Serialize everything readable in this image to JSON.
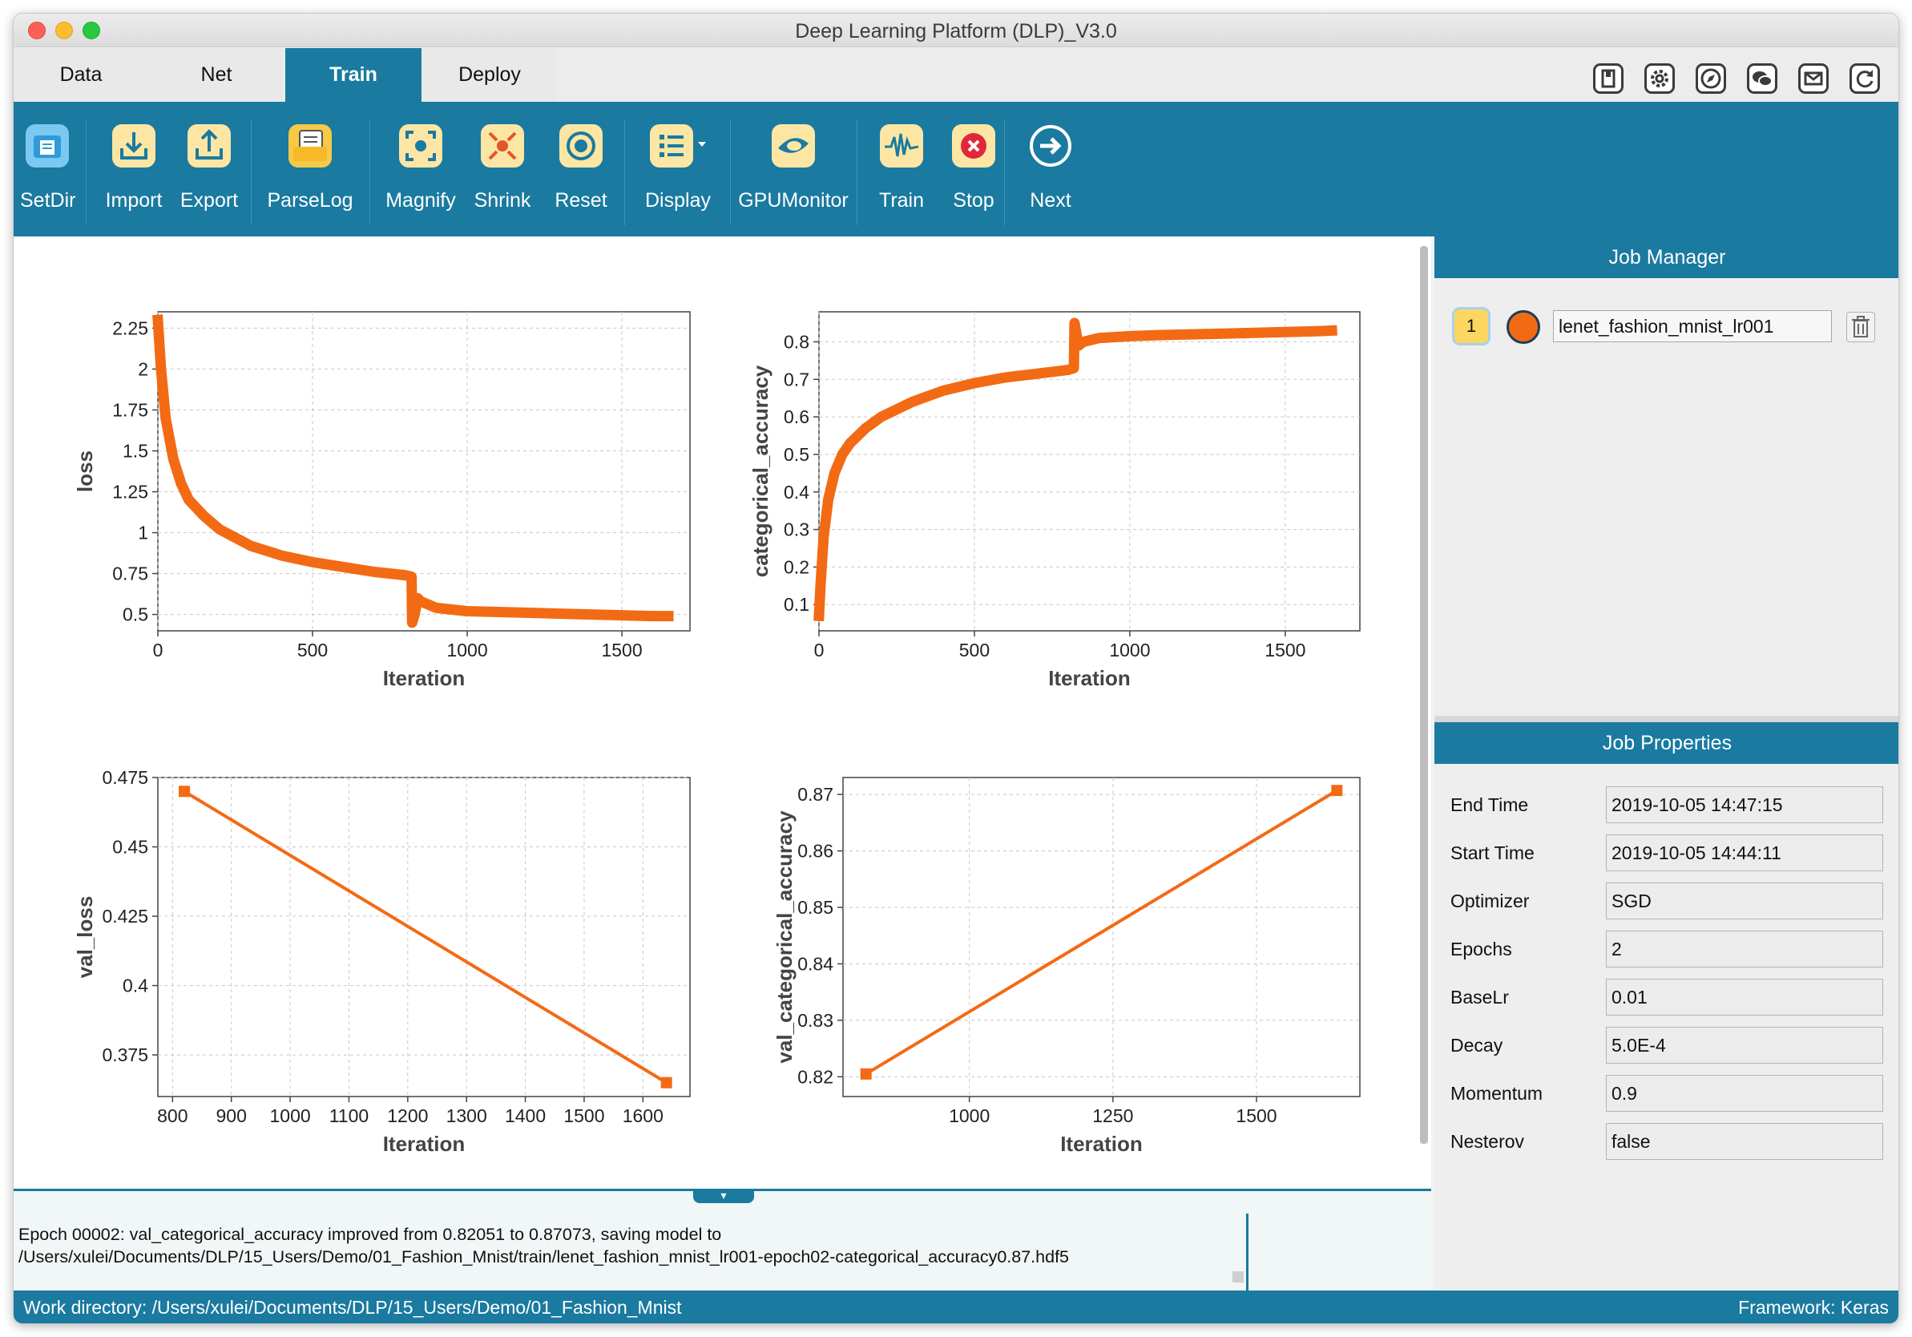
{
  "window": {
    "title": "Deep Learning Platform (DLP)_V3.0"
  },
  "tabs": [
    {
      "label": "Data"
    },
    {
      "label": "Net"
    },
    {
      "label": "Train"
    },
    {
      "label": "Deploy"
    }
  ],
  "active_tab": "Train",
  "top_icons": [
    "bookmark-icon",
    "gear-icon",
    "compass-icon",
    "wechat-icon",
    "mail-icon",
    "refresh-icon"
  ],
  "toolbar": {
    "setdir": "SetDir",
    "import": "Import",
    "export": "Export",
    "parselog": "ParseLog",
    "magnify": "Magnify",
    "shrink": "Shrink",
    "reset": "Reset",
    "display": "Display",
    "gpumonitor": "GPUMonitor",
    "train": "Train",
    "stop": "Stop",
    "next": "Next"
  },
  "colors": {
    "accent": "#1a7aa0",
    "series": "#f36a14",
    "icon_bg": "#fde6a4"
  },
  "chart_data": [
    {
      "type": "line",
      "xlabel": "Iteration",
      "ylabel": "loss",
      "xlim": [
        0,
        1720
      ],
      "ylim": [
        0.4,
        2.35
      ],
      "xticks": [
        0,
        500,
        1000,
        1500
      ],
      "yticks": [
        0.5,
        0.75,
        1,
        1.25,
        1.5,
        1.75,
        2,
        2.25
      ],
      "ytick_labels": [
        "0.5",
        "0.75",
        "1",
        "1.25",
        "1.5",
        "1.75",
        "2",
        "2.25"
      ],
      "x": [
        0,
        10,
        25,
        50,
        75,
        100,
        150,
        200,
        300,
        400,
        500,
        600,
        700,
        800,
        820,
        822,
        830,
        840,
        850,
        900,
        1000,
        1100,
        1200,
        1300,
        1400,
        1500,
        1600,
        1650
      ],
      "y": [
        2.3,
        2.0,
        1.7,
        1.45,
        1.3,
        1.2,
        1.1,
        1.02,
        0.92,
        0.86,
        0.82,
        0.79,
        0.76,
        0.74,
        0.73,
        0.45,
        0.5,
        0.6,
        0.58,
        0.54,
        0.52,
        0.515,
        0.51,
        0.505,
        0.5,
        0.495,
        0.49,
        0.49
      ]
    },
    {
      "type": "line",
      "xlabel": "Iteration",
      "ylabel": "categorical_accuracy",
      "xlim": [
        0,
        1740
      ],
      "ylim": [
        0.03,
        0.88
      ],
      "xticks": [
        0,
        500,
        1000,
        1500
      ],
      "yticks": [
        0.1,
        0.2,
        0.3,
        0.4,
        0.5,
        0.6,
        0.7,
        0.8
      ],
      "ytick_labels": [
        "0.1",
        "0.2",
        "0.3",
        "0.4",
        "0.5",
        "0.6",
        "0.7",
        "0.8"
      ],
      "x": [
        0,
        5,
        15,
        30,
        50,
        75,
        100,
        150,
        200,
        300,
        400,
        500,
        600,
        700,
        800,
        820,
        822,
        835,
        850,
        900,
        1000,
        1100,
        1200,
        1300,
        1400,
        1500,
        1600,
        1650
      ],
      "y": [
        0.07,
        0.15,
        0.28,
        0.38,
        0.45,
        0.5,
        0.53,
        0.57,
        0.6,
        0.64,
        0.67,
        0.69,
        0.705,
        0.715,
        0.725,
        0.73,
        0.85,
        0.79,
        0.8,
        0.81,
        0.815,
        0.818,
        0.82,
        0.822,
        0.824,
        0.826,
        0.828,
        0.83
      ]
    },
    {
      "type": "line",
      "xlabel": "Iteration",
      "ylabel": "val_loss",
      "xlim": [
        775,
        1680
      ],
      "ylim": [
        0.36,
        0.475
      ],
      "xticks": [
        800,
        900,
        1000,
        1100,
        1200,
        1300,
        1400,
        1500,
        1600
      ],
      "yticks": [
        0.375,
        0.4,
        0.425,
        0.45,
        0.475
      ],
      "ytick_labels": [
        "0.375",
        "0.4",
        "0.425",
        "0.45",
        "0.475"
      ],
      "x": [
        820,
        1640
      ],
      "y": [
        0.47,
        0.365
      ],
      "markers": true
    },
    {
      "type": "line",
      "xlabel": "Iteration",
      "ylabel": "val_categorical_accuracy",
      "xlim": [
        780,
        1680
      ],
      "ylim": [
        0.8165,
        0.873
      ],
      "xticks": [
        1000,
        1250,
        1500
      ],
      "yticks": [
        0.82,
        0.83,
        0.84,
        0.85,
        0.86,
        0.87
      ],
      "ytick_labels": [
        "0.82",
        "0.83",
        "0.84",
        "0.85",
        "0.86",
        "0.87"
      ],
      "x": [
        820,
        1640
      ],
      "y": [
        0.8205,
        0.8707
      ],
      "markers": true
    }
  ],
  "console": {
    "line1": "Epoch 00002: val_categorical_accuracy improved from 0.82051 to 0.87073, saving model to",
    "line2": "/Users/xulei/Documents/DLP/15_Users/Demo/01_Fashion_Mnist/train/lenet_fashion_mnist_lr001-epoch02-categorical_accuracy0.87.hdf5"
  },
  "job_manager": {
    "title": "Job Manager",
    "job": {
      "number": "1",
      "name": "lenet_fashion_mnist_lr001"
    }
  },
  "job_properties": {
    "title": "Job Properties",
    "items": [
      {
        "key": "End Time",
        "value": "2019-10-05 14:47:15"
      },
      {
        "key": "Start Time",
        "value": "2019-10-05 14:44:11"
      },
      {
        "key": "Optimizer",
        "value": "SGD"
      },
      {
        "key": "Epochs",
        "value": "2"
      },
      {
        "key": "BaseLr",
        "value": "0.01"
      },
      {
        "key": "Decay",
        "value": "5.0E-4"
      },
      {
        "key": "Momentum",
        "value": "0.9"
      },
      {
        "key": "Nesterov",
        "value": "false"
      }
    ]
  },
  "status": {
    "workdir": "Work directory: /Users/xulei/Documents/DLP/15_Users/Demo/01_Fashion_Mnist",
    "framework": "Framework: Keras"
  }
}
